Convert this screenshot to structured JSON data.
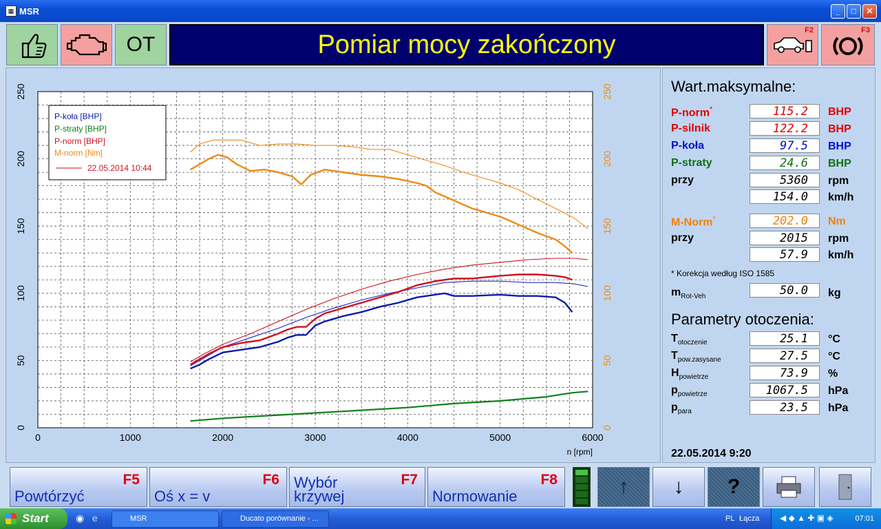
{
  "window": {
    "title": "MSR",
    "buttons": {
      "minimize": "_",
      "maximize": "□",
      "close": "✕"
    }
  },
  "topbar": {
    "ot_label": "OT",
    "status_text": "Pomiar mocy zakończony",
    "f2_key": "F2",
    "f3_key": "F3"
  },
  "chart_data": {
    "type": "line",
    "xlabel": "n [rpm]",
    "xlim": [
      0,
      6000
    ],
    "ylim": [
      0,
      250
    ],
    "y2lim": [
      0,
      250
    ],
    "x_ticks": [
      "0",
      "1000",
      "2000",
      "3000",
      "4000",
      "5000",
      "6000"
    ],
    "y_ticks": [
      "0",
      "50",
      "100",
      "150",
      "200",
      "250"
    ],
    "grid": true,
    "legend_position": "top-left",
    "legend": [
      "P-koła [BHP]",
      "P-straty [BHP]",
      "P-norm [BHP]",
      "M-norm [Nm]"
    ],
    "legend_date": "22.05.2014 10:44",
    "series": [
      {
        "name": "P-koła [BHP]",
        "color": "#0a1ab0",
        "width": 2.4,
        "x": [
          1650,
          1750,
          1850,
          2000,
          2200,
          2400,
          2600,
          2700,
          2800,
          2900,
          3000,
          3100,
          3300,
          3500,
          3700,
          3900,
          4100,
          4300,
          4400,
          4500,
          4700,
          5000,
          5200,
          5400,
          5600,
          5700,
          5780
        ],
        "y": [
          44,
          47,
          51,
          56,
          58,
          60,
          64,
          67,
          69,
          69,
          76,
          79,
          83,
          86,
          90,
          93,
          97,
          99,
          100,
          98,
          98,
          99,
          98,
          98,
          97,
          93,
          86
        ]
      },
      {
        "name": "P-koła [BHP] 22.05.2014 10:44",
        "color": "#1a2ac0",
        "width": 1.1,
        "x": [
          1650,
          1800,
          2000,
          2300,
          2600,
          2900,
          3200,
          3500,
          3800,
          4100,
          4400,
          4700,
          5000,
          5300,
          5600,
          5800,
          5950
        ],
        "y": [
          46,
          52,
          60,
          67,
          74,
          82,
          89,
          95,
          100,
          104,
          108,
          109,
          109,
          108,
          108,
          107,
          105
        ]
      },
      {
        "name": "P-norm [BHP]",
        "color": "#d01020",
        "width": 2.4,
        "x": [
          1650,
          1750,
          1850,
          2000,
          2200,
          2400,
          2600,
          2700,
          2800,
          2900,
          3000,
          3100,
          3300,
          3500,
          3700,
          3900,
          4100,
          4300,
          4500,
          4700,
          5000,
          5200,
          5400,
          5600,
          5700,
          5780
        ],
        "y": [
          47,
          51,
          55,
          60,
          63,
          65,
          70,
          73,
          75,
          75,
          81,
          85,
          89,
          93,
          97,
          101,
          106,
          109,
          111,
          111,
          113,
          114,
          114,
          113,
          112,
          110
        ]
      },
      {
        "name": "P-norm [BHP] 22.05.2014 10:44",
        "color": "#d01020",
        "width": 1.1,
        "x": [
          1650,
          1800,
          2000,
          2300,
          2600,
          2900,
          3200,
          3500,
          3800,
          4100,
          4400,
          4700,
          5000,
          5300,
          5600,
          5800,
          5950
        ],
        "y": [
          49,
          55,
          62,
          70,
          79,
          88,
          96,
          103,
          109,
          114,
          118,
          121,
          123,
          125,
          126,
          126,
          125
        ]
      },
      {
        "name": "P-straty [BHP]",
        "color": "#10801a",
        "width": 2.2,
        "x": [
          1650,
          2000,
          2500,
          3000,
          3500,
          4000,
          4500,
          5000,
          5500,
          5780,
          5950
        ],
        "y": [
          5,
          7,
          9,
          11,
          13,
          15,
          18,
          20,
          23,
          26,
          27
        ]
      },
      {
        "name": "M-norm [Nm]",
        "color": "#ee8a14",
        "width": 2.4,
        "x": [
          1650,
          1750,
          1850,
          1950,
          2050,
          2150,
          2300,
          2450,
          2600,
          2750,
          2850,
          2950,
          3100,
          3300,
          3500,
          3700,
          3900,
          4100,
          4200,
          4300,
          4500,
          4700,
          5000,
          5200,
          5400,
          5600,
          5700,
          5780
        ],
        "y": [
          192,
          196,
          200,
          203,
          201,
          196,
          191,
          192,
          190,
          187,
          181,
          188,
          192,
          190,
          188,
          187,
          185,
          182,
          180,
          175,
          169,
          163,
          157,
          151,
          145,
          140,
          135,
          130
        ]
      },
      {
        "name": "M-norm [Nm] 22.05.2014 10:44",
        "color": "#ee8a14",
        "width": 1.1,
        "x": [
          1650,
          1750,
          1900,
          2050,
          2200,
          2400,
          2600,
          2800,
          3000,
          3200,
          3400,
          3600,
          3800,
          4000,
          4200,
          4400,
          4600,
          4800,
          5000,
          5200,
          5400,
          5600,
          5800,
          5950
        ],
        "y": [
          205,
          211,
          214,
          214,
          214,
          210,
          211,
          211,
          210,
          210,
          209,
          207,
          207,
          203,
          199,
          195,
          190,
          186,
          182,
          177,
          170,
          163,
          156,
          148
        ]
      }
    ]
  },
  "max_values": {
    "title": "Wart.maksymalne:",
    "rows": [
      {
        "label": "P-norm",
        "star": "*",
        "value": "115.2",
        "unit": "BHP",
        "color": "#e00000"
      },
      {
        "label": "P-silnik",
        "star": "",
        "value": "122.2",
        "unit": "BHP",
        "color": "#e00000"
      },
      {
        "label": "P-koła",
        "star": "",
        "value": "97.5",
        "unit": "BHP",
        "color": "#0010d0"
      },
      {
        "label": "P-straty",
        "star": "",
        "value": "24.6",
        "unit": "BHP",
        "color": "#107010"
      },
      {
        "label": "przy",
        "star": "",
        "value": "5360",
        "unit": "rpm",
        "color": "#000000"
      },
      {
        "label": "",
        "star": "",
        "value": "154.0",
        "unit": "km/h",
        "color": "#000000"
      },
      {
        "label": "M-Norm",
        "star": "*",
        "value": "202.0",
        "unit": "Nm",
        "color": "#f08010"
      },
      {
        "label": "przy",
        "star": "",
        "value": "2015",
        "unit": "rpm",
        "color": "#000000"
      },
      {
        "label": "",
        "star": "",
        "value": "57.9",
        "unit": "km/h",
        "color": "#000000"
      }
    ],
    "note": "* Korekcja według ISO 1585",
    "mrot": {
      "label": "m",
      "sub": "Rot-Veh",
      "value": "50.0",
      "unit": "kg"
    }
  },
  "ambient": {
    "title": "Parametry otoczenia:",
    "rows": [
      {
        "label": "T",
        "sub": "otoczenie",
        "value": "25.1",
        "unit": "°C"
      },
      {
        "label": "T",
        "sub": "pow.zasysane",
        "value": "27.5",
        "unit": "°C"
      },
      {
        "label": "H",
        "sub": "powietrze",
        "value": "73.9",
        "unit": "%"
      },
      {
        "label": "p",
        "sub": "powietrze",
        "value": "1067.5",
        "unit": "hPa"
      },
      {
        "label": "p",
        "sub": "para",
        "value": "23.5",
        "unit": "hPa"
      }
    ],
    "datetime": "22.05.2014  9:20"
  },
  "bottom": {
    "f5": {
      "key": "F5",
      "label": "Powtórzyć"
    },
    "f6": {
      "key": "F6",
      "label": "Oś x = v"
    },
    "f7": {
      "key": "F7",
      "label1": "Wybór",
      "label2": "krzywej"
    },
    "f8": {
      "key": "F8",
      "label": "Normowanie"
    }
  },
  "taskbar": {
    "start": "Start",
    "items": [
      "MSR",
      "Ducato porównanie - ..."
    ],
    "lang": "PL",
    "links": "Łącza",
    "clock": "07:01"
  }
}
